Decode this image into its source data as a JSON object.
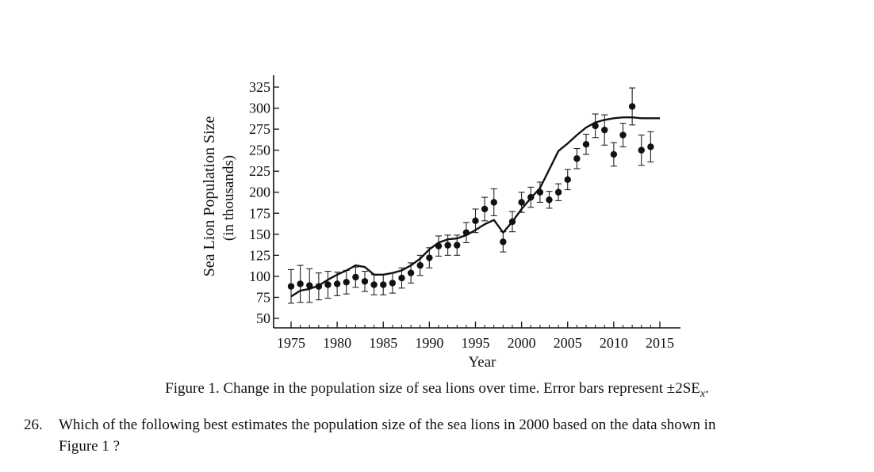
{
  "chart_data": {
    "type": "scatter",
    "ylabel": "Sea Lion Population Size",
    "ylabel_sub": "(in thousands)",
    "xlabel": "Year",
    "xlim": [
      1974,
      2016
    ],
    "ylim": [
      42,
      330
    ],
    "xticks": [
      "1975",
      "1980",
      "1985",
      "1990",
      "1995",
      "2000",
      "2005",
      "2010",
      "2015"
    ],
    "yticks": [
      "50",
      "75",
      "100",
      "125",
      "150",
      "175",
      "200",
      "225",
      "250",
      "275",
      "300",
      "325"
    ],
    "points": [
      {
        "x": 1975,
        "y": 88,
        "err": 20
      },
      {
        "x": 1976,
        "y": 91,
        "err": 22
      },
      {
        "x": 1977,
        "y": 89,
        "err": 20
      },
      {
        "x": 1978,
        "y": 88,
        "err": 16
      },
      {
        "x": 1979,
        "y": 90,
        "err": 16
      },
      {
        "x": 1980,
        "y": 91,
        "err": 14
      },
      {
        "x": 1981,
        "y": 93,
        "err": 14
      },
      {
        "x": 1982,
        "y": 99,
        "err": 12
      },
      {
        "x": 1983,
        "y": 94,
        "err": 12
      },
      {
        "x": 1984,
        "y": 90,
        "err": 12
      },
      {
        "x": 1985,
        "y": 90,
        "err": 12
      },
      {
        "x": 1986,
        "y": 92,
        "err": 12
      },
      {
        "x": 1987,
        "y": 98,
        "err": 12
      },
      {
        "x": 1988,
        "y": 104,
        "err": 12
      },
      {
        "x": 1989,
        "y": 113,
        "err": 12
      },
      {
        "x": 1990,
        "y": 122,
        "err": 12
      },
      {
        "x": 1991,
        "y": 136,
        "err": 12
      },
      {
        "x": 1992,
        "y": 137,
        "err": 12
      },
      {
        "x": 1993,
        "y": 137,
        "err": 12
      },
      {
        "x": 1994,
        "y": 152,
        "err": 12
      },
      {
        "x": 1995,
        "y": 166,
        "err": 14
      },
      {
        "x": 1996,
        "y": 180,
        "err": 14
      },
      {
        "x": 1997,
        "y": 188,
        "err": 16
      },
      {
        "x": 1998,
        "y": 141,
        "err": 12
      },
      {
        "x": 1999,
        "y": 165,
        "err": 12
      },
      {
        "x": 2000,
        "y": 188,
        "err": 12
      },
      {
        "x": 2001,
        "y": 194,
        "err": 12
      },
      {
        "x": 2002,
        "y": 200,
        "err": 12
      },
      {
        "x": 2003,
        "y": 191,
        "err": 10
      },
      {
        "x": 2004,
        "y": 200,
        "err": 10
      },
      {
        "x": 2005,
        "y": 215,
        "err": 12
      },
      {
        "x": 2006,
        "y": 240,
        "err": 12
      },
      {
        "x": 2007,
        "y": 257,
        "err": 12
      },
      {
        "x": 2008,
        "y": 279,
        "err": 14
      },
      {
        "x": 2009,
        "y": 274,
        "err": 18
      },
      {
        "x": 2010,
        "y": 245,
        "err": 14
      },
      {
        "x": 2011,
        "y": 268,
        "err": 14
      },
      {
        "x": 2012,
        "y": 302,
        "err": 22
      },
      {
        "x": 2013,
        "y": 250,
        "err": 18
      },
      {
        "x": 2014,
        "y": 254,
        "err": 18
      }
    ],
    "trend_line": [
      {
        "x": 1975,
        "y": 76
      },
      {
        "x": 1976,
        "y": 83
      },
      {
        "x": 1977,
        "y": 85
      },
      {
        "x": 1978,
        "y": 89
      },
      {
        "x": 1979,
        "y": 96
      },
      {
        "x": 1980,
        "y": 102
      },
      {
        "x": 1981,
        "y": 107
      },
      {
        "x": 1982,
        "y": 113
      },
      {
        "x": 1983,
        "y": 111
      },
      {
        "x": 1984,
        "y": 102
      },
      {
        "x": 1985,
        "y": 102
      },
      {
        "x": 1986,
        "y": 104
      },
      {
        "x": 1987,
        "y": 107
      },
      {
        "x": 1988,
        "y": 113
      },
      {
        "x": 1989,
        "y": 121
      },
      {
        "x": 1990,
        "y": 132
      },
      {
        "x": 1991,
        "y": 140
      },
      {
        "x": 1992,
        "y": 144
      },
      {
        "x": 1993,
        "y": 145
      },
      {
        "x": 1994,
        "y": 149
      },
      {
        "x": 1995,
        "y": 155
      },
      {
        "x": 1996,
        "y": 162
      },
      {
        "x": 1997,
        "y": 167
      },
      {
        "x": 1998,
        "y": 152
      },
      {
        "x": 1999,
        "y": 165
      },
      {
        "x": 2000,
        "y": 180
      },
      {
        "x": 2001,
        "y": 193
      },
      {
        "x": 2002,
        "y": 205
      },
      {
        "x": 2003,
        "y": 227
      },
      {
        "x": 2004,
        "y": 249
      },
      {
        "x": 2005,
        "y": 258
      },
      {
        "x": 2006,
        "y": 268
      },
      {
        "x": 2007,
        "y": 277
      },
      {
        "x": 2008,
        "y": 283
      },
      {
        "x": 2009,
        "y": 286
      },
      {
        "x": 2010,
        "y": 288
      },
      {
        "x": 2011,
        "y": 289
      },
      {
        "x": 2012,
        "y": 289
      },
      {
        "x": 2013,
        "y": 288
      },
      {
        "x": 2014,
        "y": 288
      },
      {
        "x": 2015,
        "y": 288
      }
    ]
  },
  "caption": {
    "text": "Figure 1. Change in the population size of sea lions over time.  Error bars represent ±2SE",
    "subscript": "x",
    "end": "."
  },
  "question": {
    "number": "26.",
    "line1": "Which of the following best estimates the population size of the sea lions in 2000 based on the data shown in",
    "line2": "Figure 1 ?"
  }
}
